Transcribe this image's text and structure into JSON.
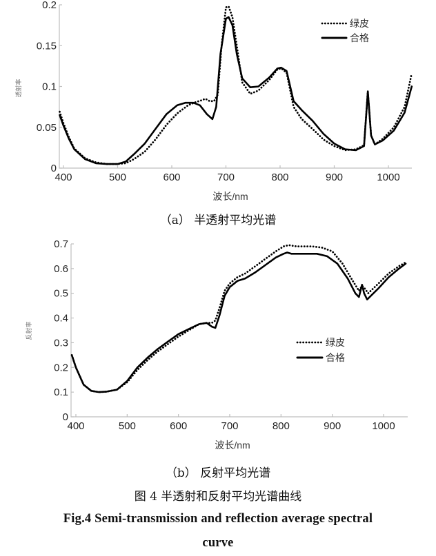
{
  "figure": {
    "caption_cn": "图 4  半透射和反射平均光谱曲线",
    "caption_en_line1": "Fig.4  Semi-transmission  and  reflection  average  spectral",
    "caption_en_line2": "curve"
  },
  "chart_data": [
    {
      "id": "a",
      "type": "line",
      "title": "（a）  半透射平均光谱",
      "xlabel": "波长/nm",
      "ylabel": "透射率",
      "xlim": [
        393,
        1043
      ],
      "ylim": [
        0,
        0.2
      ],
      "xticks": [
        400,
        500,
        600,
        700,
        800,
        900,
        1000
      ],
      "yticks": [
        0,
        0.05,
        0.1,
        0.15,
        0.2
      ],
      "ytick_labels": [
        "0",
        "0.05",
        "0.1",
        "0.15",
        "0.2"
      ],
      "grid": false,
      "legend_position": "upper right",
      "series": [
        {
          "name": "绿皮",
          "style": "dotted",
          "x": [
            393,
            400,
            410,
            420,
            440,
            460,
            480,
            500,
            515,
            530,
            550,
            570,
            590,
            610,
            630,
            645,
            655,
            662,
            670,
            678,
            685,
            692,
            700,
            705,
            712,
            720,
            730,
            745,
            760,
            780,
            795,
            802,
            812,
            825,
            840,
            860,
            880,
            900,
            920,
            940,
            955,
            962,
            968,
            975,
            990,
            1010,
            1030,
            1043
          ],
          "y": [
            0.069,
            0.055,
            0.038,
            0.024,
            0.012,
            0.007,
            0.005,
            0.005,
            0.006,
            0.011,
            0.02,
            0.035,
            0.053,
            0.067,
            0.077,
            0.081,
            0.083,
            0.085,
            0.082,
            0.082,
            0.09,
            0.15,
            0.197,
            0.198,
            0.185,
            0.15,
            0.105,
            0.091,
            0.095,
            0.108,
            0.121,
            0.122,
            0.117,
            0.075,
            0.06,
            0.048,
            0.035,
            0.027,
            0.022,
            0.023,
            0.028,
            0.094,
            0.04,
            0.029,
            0.036,
            0.05,
            0.075,
            0.116
          ]
        },
        {
          "name": "合格",
          "style": "solid",
          "x": [
            393,
            400,
            410,
            420,
            440,
            460,
            480,
            500,
            515,
            530,
            550,
            570,
            590,
            610,
            625,
            640,
            652,
            665,
            675,
            682,
            690,
            700,
            705,
            712,
            720,
            730,
            745,
            760,
            780,
            795,
            802,
            812,
            825,
            840,
            860,
            880,
            900,
            920,
            940,
            955,
            962,
            968,
            975,
            990,
            1010,
            1030,
            1043
          ],
          "y": [
            0.065,
            0.052,
            0.036,
            0.023,
            0.011,
            0.006,
            0.005,
            0.005,
            0.008,
            0.017,
            0.03,
            0.048,
            0.066,
            0.077,
            0.08,
            0.08,
            0.077,
            0.066,
            0.06,
            0.075,
            0.14,
            0.183,
            0.185,
            0.175,
            0.14,
            0.11,
            0.099,
            0.1,
            0.111,
            0.122,
            0.123,
            0.119,
            0.082,
            0.071,
            0.058,
            0.042,
            0.03,
            0.023,
            0.022,
            0.027,
            0.094,
            0.04,
            0.029,
            0.034,
            0.046,
            0.068,
            0.1
          ]
        }
      ]
    },
    {
      "id": "b",
      "type": "line",
      "title": "（b）  反射平均光谱",
      "xlabel": "波长/nm",
      "ylabel": "反射率",
      "xlim": [
        390,
        1043
      ],
      "ylim": [
        0,
        0.7
      ],
      "xticks": [
        400,
        500,
        600,
        700,
        800,
        900,
        1000
      ],
      "yticks": [
        0,
        0.1,
        0.2,
        0.3,
        0.4,
        0.5,
        0.6,
        0.7
      ],
      "ytick_labels": [
        "0",
        "0.1",
        "0.2",
        "0.3",
        "0.4",
        "0.5",
        "0.6",
        "0.7"
      ],
      "grid": false,
      "legend_position": "center right",
      "series": [
        {
          "name": "绿皮",
          "style": "dotted",
          "x": [
            392,
            400,
            415,
            430,
            445,
            460,
            480,
            500,
            520,
            540,
            560,
            580,
            600,
            620,
            640,
            655,
            665,
            672,
            680,
            690,
            700,
            715,
            730,
            750,
            770,
            790,
            805,
            815,
            830,
            860,
            880,
            900,
            920,
            940,
            952,
            958,
            963,
            970,
            990,
            1010,
            1030,
            1043
          ],
          "y": [
            0.25,
            0.2,
            0.13,
            0.105,
            0.1,
            0.102,
            0.11,
            0.14,
            0.19,
            0.23,
            0.265,
            0.295,
            0.325,
            0.35,
            0.375,
            0.38,
            0.38,
            0.39,
            0.44,
            0.51,
            0.54,
            0.565,
            0.58,
            0.61,
            0.64,
            0.67,
            0.69,
            0.695,
            0.69,
            0.69,
            0.685,
            0.67,
            0.62,
            0.55,
            0.51,
            0.53,
            0.52,
            0.5,
            0.54,
            0.58,
            0.61,
            0.625
          ]
        },
        {
          "name": "合格",
          "style": "solid",
          "x": [
            392,
            400,
            415,
            430,
            445,
            460,
            480,
            500,
            520,
            540,
            560,
            580,
            600,
            620,
            640,
            655,
            665,
            672,
            680,
            690,
            700,
            715,
            730,
            750,
            770,
            790,
            805,
            812,
            820,
            840,
            870,
            890,
            910,
            930,
            945,
            952,
            958,
            962,
            968,
            990,
            1010,
            1030,
            1043
          ],
          "y": [
            0.25,
            0.2,
            0.13,
            0.105,
            0.1,
            0.102,
            0.11,
            0.145,
            0.2,
            0.24,
            0.275,
            0.305,
            0.335,
            0.355,
            0.375,
            0.38,
            0.365,
            0.36,
            0.41,
            0.49,
            0.525,
            0.55,
            0.56,
            0.585,
            0.615,
            0.645,
            0.66,
            0.665,
            0.66,
            0.66,
            0.66,
            0.65,
            0.62,
            0.56,
            0.5,
            0.485,
            0.535,
            0.5,
            0.475,
            0.52,
            0.565,
            0.6,
            0.62
          ]
        }
      ]
    }
  ]
}
